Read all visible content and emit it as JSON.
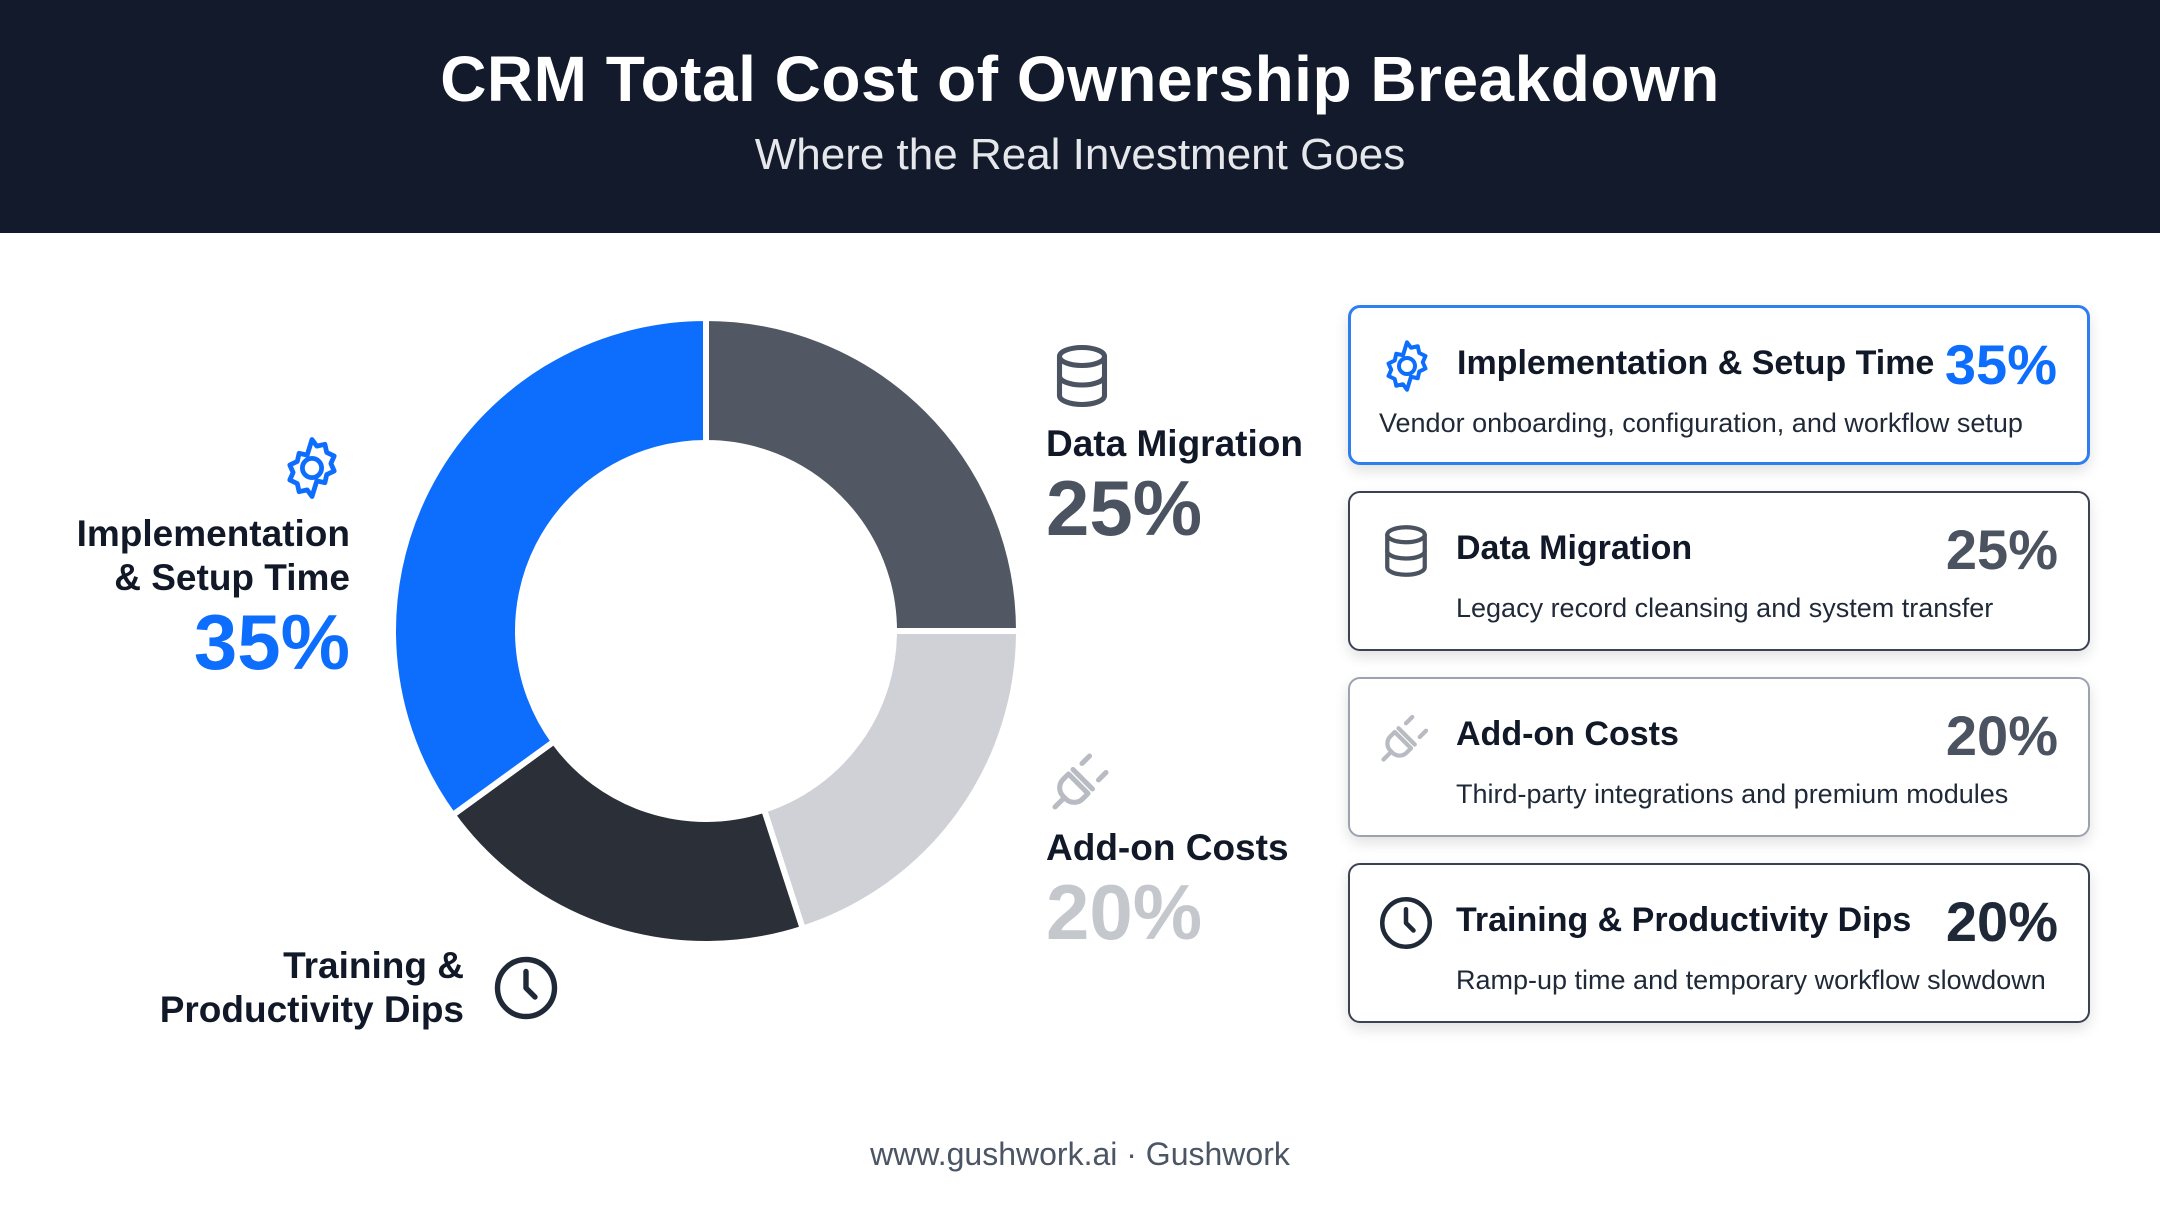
{
  "header": {
    "title": "CRM Total Cost of Ownership Breakdown",
    "subtitle": "Where the Real Investment Goes"
  },
  "chart_data": {
    "type": "pie",
    "variant": "donut",
    "title": "CRM Total Cost of Ownership Breakdown",
    "subtitle": "Where the Real Investment Goes",
    "categories": [
      "Implementation & Setup Time",
      "Data Migration",
      "Add-on Costs",
      "Training & Productivity Dips"
    ],
    "values": [
      35,
      25,
      20,
      20
    ],
    "unit": "%",
    "colors": [
      "#0d6efd",
      "#525863",
      "#cfd1d6",
      "#2b2f38"
    ]
  },
  "labels": {
    "impl": {
      "name_line1": "Implementation",
      "name_line2": "& Setup Time",
      "pct": "35%"
    },
    "migr": {
      "name": "Data Migration",
      "pct": "25%"
    },
    "addon": {
      "name": "Add-on Costs",
      "pct": "20%"
    },
    "train": {
      "name_line1": "Training &",
      "name_line2": "Productivity Dips"
    }
  },
  "cards": [
    {
      "title": "Implementation & Setup Time",
      "pct": "35%",
      "desc": "Vendor onboarding, configuration, and workflow setup",
      "icon": "gear-icon",
      "pct_color": "#0d6efd",
      "icon_color": "#0d6efd"
    },
    {
      "title": "Data Migration",
      "pct": "25%",
      "desc": "Legacy record cleansing and system transfer",
      "icon": "database-icon",
      "pct_color": "#4b5260",
      "icon_color": "#4b5260"
    },
    {
      "title": "Add-on Costs",
      "pct": "20%",
      "desc": "Third-party integrations and premium modules",
      "icon": "plug-icon",
      "pct_color": "#4b5260",
      "icon_color": "#b8bbc1"
    },
    {
      "title": "Training & Productivity Dips",
      "pct": "20%",
      "desc": "Ramp-up time and temporary workflow slowdown",
      "icon": "clock-icon",
      "pct_color": "#1f2937",
      "icon_color": "#2b2f38"
    }
  ],
  "footer": {
    "text": "www.gushwork.ai · Gushwork"
  }
}
